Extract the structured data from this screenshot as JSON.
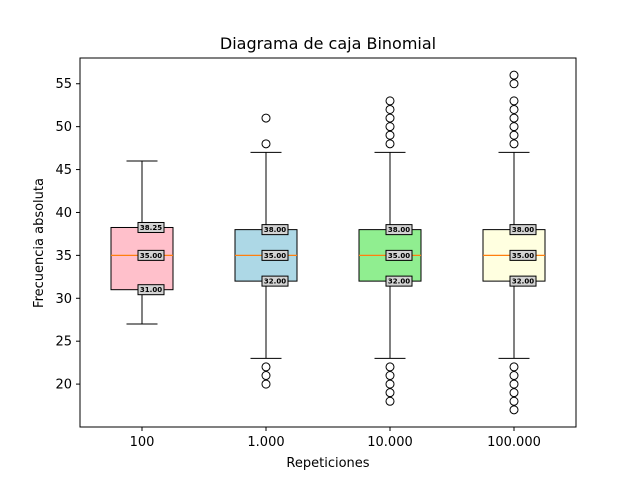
{
  "chart_data": {
    "type": "box",
    "title": "Diagrama de caja Binomial",
    "xlabel": "Repeticiones",
    "ylabel": "Frecuencia absoluta",
    "ylim": [
      15,
      58
    ],
    "yticks": [
      20,
      25,
      30,
      35,
      40,
      45,
      50,
      55
    ],
    "categories": [
      "100",
      "1.000",
      "10.000",
      "100.000"
    ],
    "colors": {
      "median": "#ff7f0e",
      "label_bg": "#d3d3d3"
    },
    "boxes": [
      {
        "category": "100",
        "color": "#ffc0cb",
        "whisker_low": 27,
        "q1": 31,
        "median": 35,
        "q3": 38.25,
        "whisker_high": 46,
        "labels": {
          "q1": "31.00",
          "median": "35.00",
          "q3": "38.25"
        },
        "outliers": []
      },
      {
        "category": "1.000",
        "color": "#add8e6",
        "whisker_low": 23,
        "q1": 32,
        "median": 35,
        "q3": 38,
        "whisker_high": 47,
        "labels": {
          "q1": "32.00",
          "median": "35.00",
          "q3": "38.00"
        },
        "outliers": [
          20,
          21,
          22,
          48,
          51
        ]
      },
      {
        "category": "10.000",
        "color": "#90ee90",
        "whisker_low": 23,
        "q1": 32,
        "median": 35,
        "q3": 38,
        "whisker_high": 47,
        "labels": {
          "q1": "32.00",
          "median": "35.00",
          "q3": "38.00"
        },
        "outliers": [
          18,
          19,
          20,
          21,
          22,
          48,
          49,
          50,
          51,
          52,
          53
        ]
      },
      {
        "category": "100.000",
        "color": "#ffffe0",
        "whisker_low": 23,
        "q1": 32,
        "median": 35,
        "q3": 38,
        "whisker_high": 47,
        "labels": {
          "q1": "32.00",
          "median": "35.00",
          "q3": "38.00"
        },
        "outliers": [
          17,
          18,
          19,
          20,
          21,
          22,
          48,
          49,
          50,
          51,
          52,
          53,
          55,
          56
        ]
      }
    ]
  }
}
